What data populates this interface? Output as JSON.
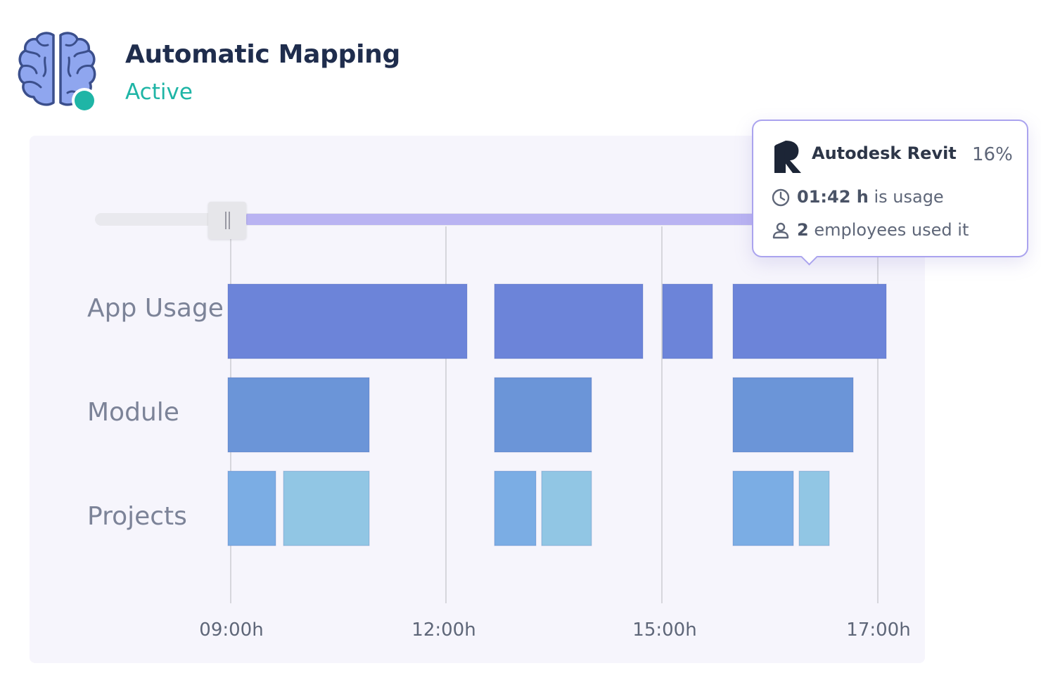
{
  "header": {
    "title": "Automatic Mapping",
    "status": "Active",
    "icon": "brain-icon",
    "status_color": "#1fb5a6"
  },
  "timeline": {
    "rows": [
      "App Usage",
      "Module",
      "Projects"
    ],
    "ticks": [
      "09:00h",
      "12:00h",
      "15:00h",
      "17:00h"
    ],
    "range_slider": {
      "start": "09:00h",
      "end": "17:00h"
    },
    "colors": {
      "app_usage": "#6c84d9",
      "module": "#6b95d8",
      "projects_a": "#7badE4",
      "projects_b": "#91c6e4",
      "accent": "#aaa3ee"
    }
  },
  "chart_data": {
    "type": "gantt",
    "x_ticks": [
      "09:00h",
      "12:00h",
      "15:00h",
      "17:00h"
    ],
    "rows": [
      "App Usage",
      "Module",
      "Projects"
    ],
    "grid": true
  },
  "tooltip": {
    "app_name": "Autodesk Revit",
    "app_icon": "revit-logo",
    "share": "16%",
    "usage_value": "01:42 h",
    "usage_suffix": " is usage",
    "employees_value": "2",
    "employees_suffix": " employees used it"
  }
}
